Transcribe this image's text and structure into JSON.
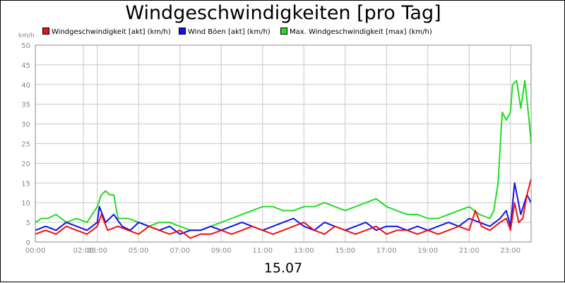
{
  "chart_data": {
    "type": "line",
    "title": "Windgeschwindigkeiten [pro Tag]",
    "ylabel": "km/h",
    "xlabel": "15.07",
    "ylim": [
      0,
      50
    ],
    "yticks": [
      0,
      5,
      10,
      15,
      20,
      25,
      30,
      35,
      40,
      45,
      50
    ],
    "xlim": [
      0,
      24
    ],
    "xticks": [
      {
        "pos": 0,
        "label": "00:00"
      },
      {
        "pos": 2.33,
        "label": "02:00"
      },
      {
        "pos": 3.0,
        "label": "03:00"
      },
      {
        "pos": 5.0,
        "label": "05:00"
      },
      {
        "pos": 7.0,
        "label": "07:00"
      },
      {
        "pos": 9.0,
        "label": "09:00"
      },
      {
        "pos": 11.0,
        "label": "11:00"
      },
      {
        "pos": 13.0,
        "label": "13:00"
      },
      {
        "pos": 15.0,
        "label": "15:00"
      },
      {
        "pos": 17.0,
        "label": "17:00"
      },
      {
        "pos": 19.0,
        "label": "19:00"
      },
      {
        "pos": 21.0,
        "label": "21:00"
      },
      {
        "pos": 23.0,
        "label": "23:00"
      }
    ],
    "grid": true,
    "legend_position": "top",
    "series": [
      {
        "name": "Windgeschwindigkeit [akt] (km/h)",
        "color": "#ee1111",
        "x": [
          0,
          0.5,
          1,
          1.5,
          2,
          2.5,
          3,
          3.2,
          3.5,
          4,
          4.5,
          5,
          5.5,
          6,
          6.5,
          7,
          7.5,
          8,
          8.5,
          9,
          9.5,
          10,
          10.5,
          11,
          11.5,
          12,
          12.5,
          13,
          13.5,
          14,
          14.5,
          15,
          15.5,
          16,
          16.5,
          17,
          17.5,
          18,
          18.5,
          19,
          19.5,
          20,
          20.5,
          21,
          21.3,
          21.6,
          22,
          22.5,
          22.8,
          23,
          23.2,
          23.4,
          23.6,
          23.8,
          24
        ],
        "y": [
          2,
          3,
          2,
          4,
          3,
          2,
          4,
          7,
          3,
          4,
          3,
          2,
          4,
          3,
          2,
          3,
          1,
          2,
          2,
          3,
          2,
          3,
          4,
          3,
          2,
          3,
          4,
          5,
          3,
          2,
          4,
          3,
          2,
          3,
          4,
          2,
          3,
          3,
          2,
          3,
          2,
          3,
          4,
          3,
          8,
          4,
          3,
          5,
          6,
          3,
          10,
          5,
          6,
          12,
          16
        ]
      },
      {
        "name": "Wind Böen [akt] (km/h)",
        "color": "#1111ee",
        "x": [
          0,
          0.5,
          1,
          1.5,
          2,
          2.5,
          3,
          3.1,
          3.4,
          3.8,
          4.2,
          4.6,
          5,
          5.5,
          6,
          6.5,
          7,
          7.5,
          8,
          8.5,
          9,
          9.5,
          10,
          10.5,
          11,
          11.5,
          12,
          12.5,
          13,
          13.5,
          14,
          14.5,
          15,
          15.5,
          16,
          16.5,
          17,
          17.5,
          18,
          18.5,
          19,
          19.5,
          20,
          20.5,
          21,
          21.5,
          22,
          22.5,
          22.8,
          23,
          23.2,
          23.5,
          23.8,
          24
        ],
        "y": [
          3,
          4,
          3,
          5,
          4,
          3,
          5,
          9,
          5,
          7,
          4,
          3,
          5,
          4,
          3,
          4,
          2,
          3,
          3,
          4,
          3,
          4,
          5,
          4,
          3,
          4,
          5,
          6,
          4,
          3,
          5,
          4,
          3,
          4,
          5,
          3,
          4,
          4,
          3,
          4,
          3,
          4,
          5,
          4,
          6,
          5,
          4,
          6,
          8,
          4,
          15,
          7,
          12,
          10
        ]
      },
      {
        "name": "Max. Windgeschwindigkeit [max] (km/h)",
        "color": "#22dd22",
        "x": [
          0,
          0.3,
          0.6,
          1,
          1.5,
          2,
          2.5,
          3,
          3.2,
          3.4,
          3.6,
          3.8,
          4,
          4.5,
          5,
          5.5,
          6,
          6.5,
          7,
          7.5,
          8,
          8.5,
          9,
          9.5,
          10,
          10.5,
          11,
          11.5,
          12,
          12.5,
          13,
          13.5,
          14,
          14.5,
          15,
          15.5,
          16,
          16.5,
          17,
          17.5,
          18,
          18.5,
          19,
          19.5,
          20,
          20.5,
          21,
          21.5,
          22,
          22.2,
          22.4,
          22.6,
          22.8,
          23,
          23.1,
          23.3,
          23.5,
          23.7,
          23.9,
          24
        ],
        "y": [
          5,
          6,
          6,
          7,
          5,
          6,
          5,
          9,
          12,
          13,
          12,
          12,
          6,
          6,
          5,
          4,
          5,
          5,
          4,
          3,
          3,
          4,
          5,
          6,
          7,
          8,
          9,
          9,
          8,
          8,
          9,
          9,
          10,
          9,
          8,
          9,
          10,
          11,
          9,
          8,
          7,
          7,
          6,
          6,
          7,
          8,
          9,
          7,
          6,
          8,
          15,
          33,
          31,
          33,
          40,
          41,
          34,
          41,
          31,
          25
        ]
      }
    ]
  }
}
